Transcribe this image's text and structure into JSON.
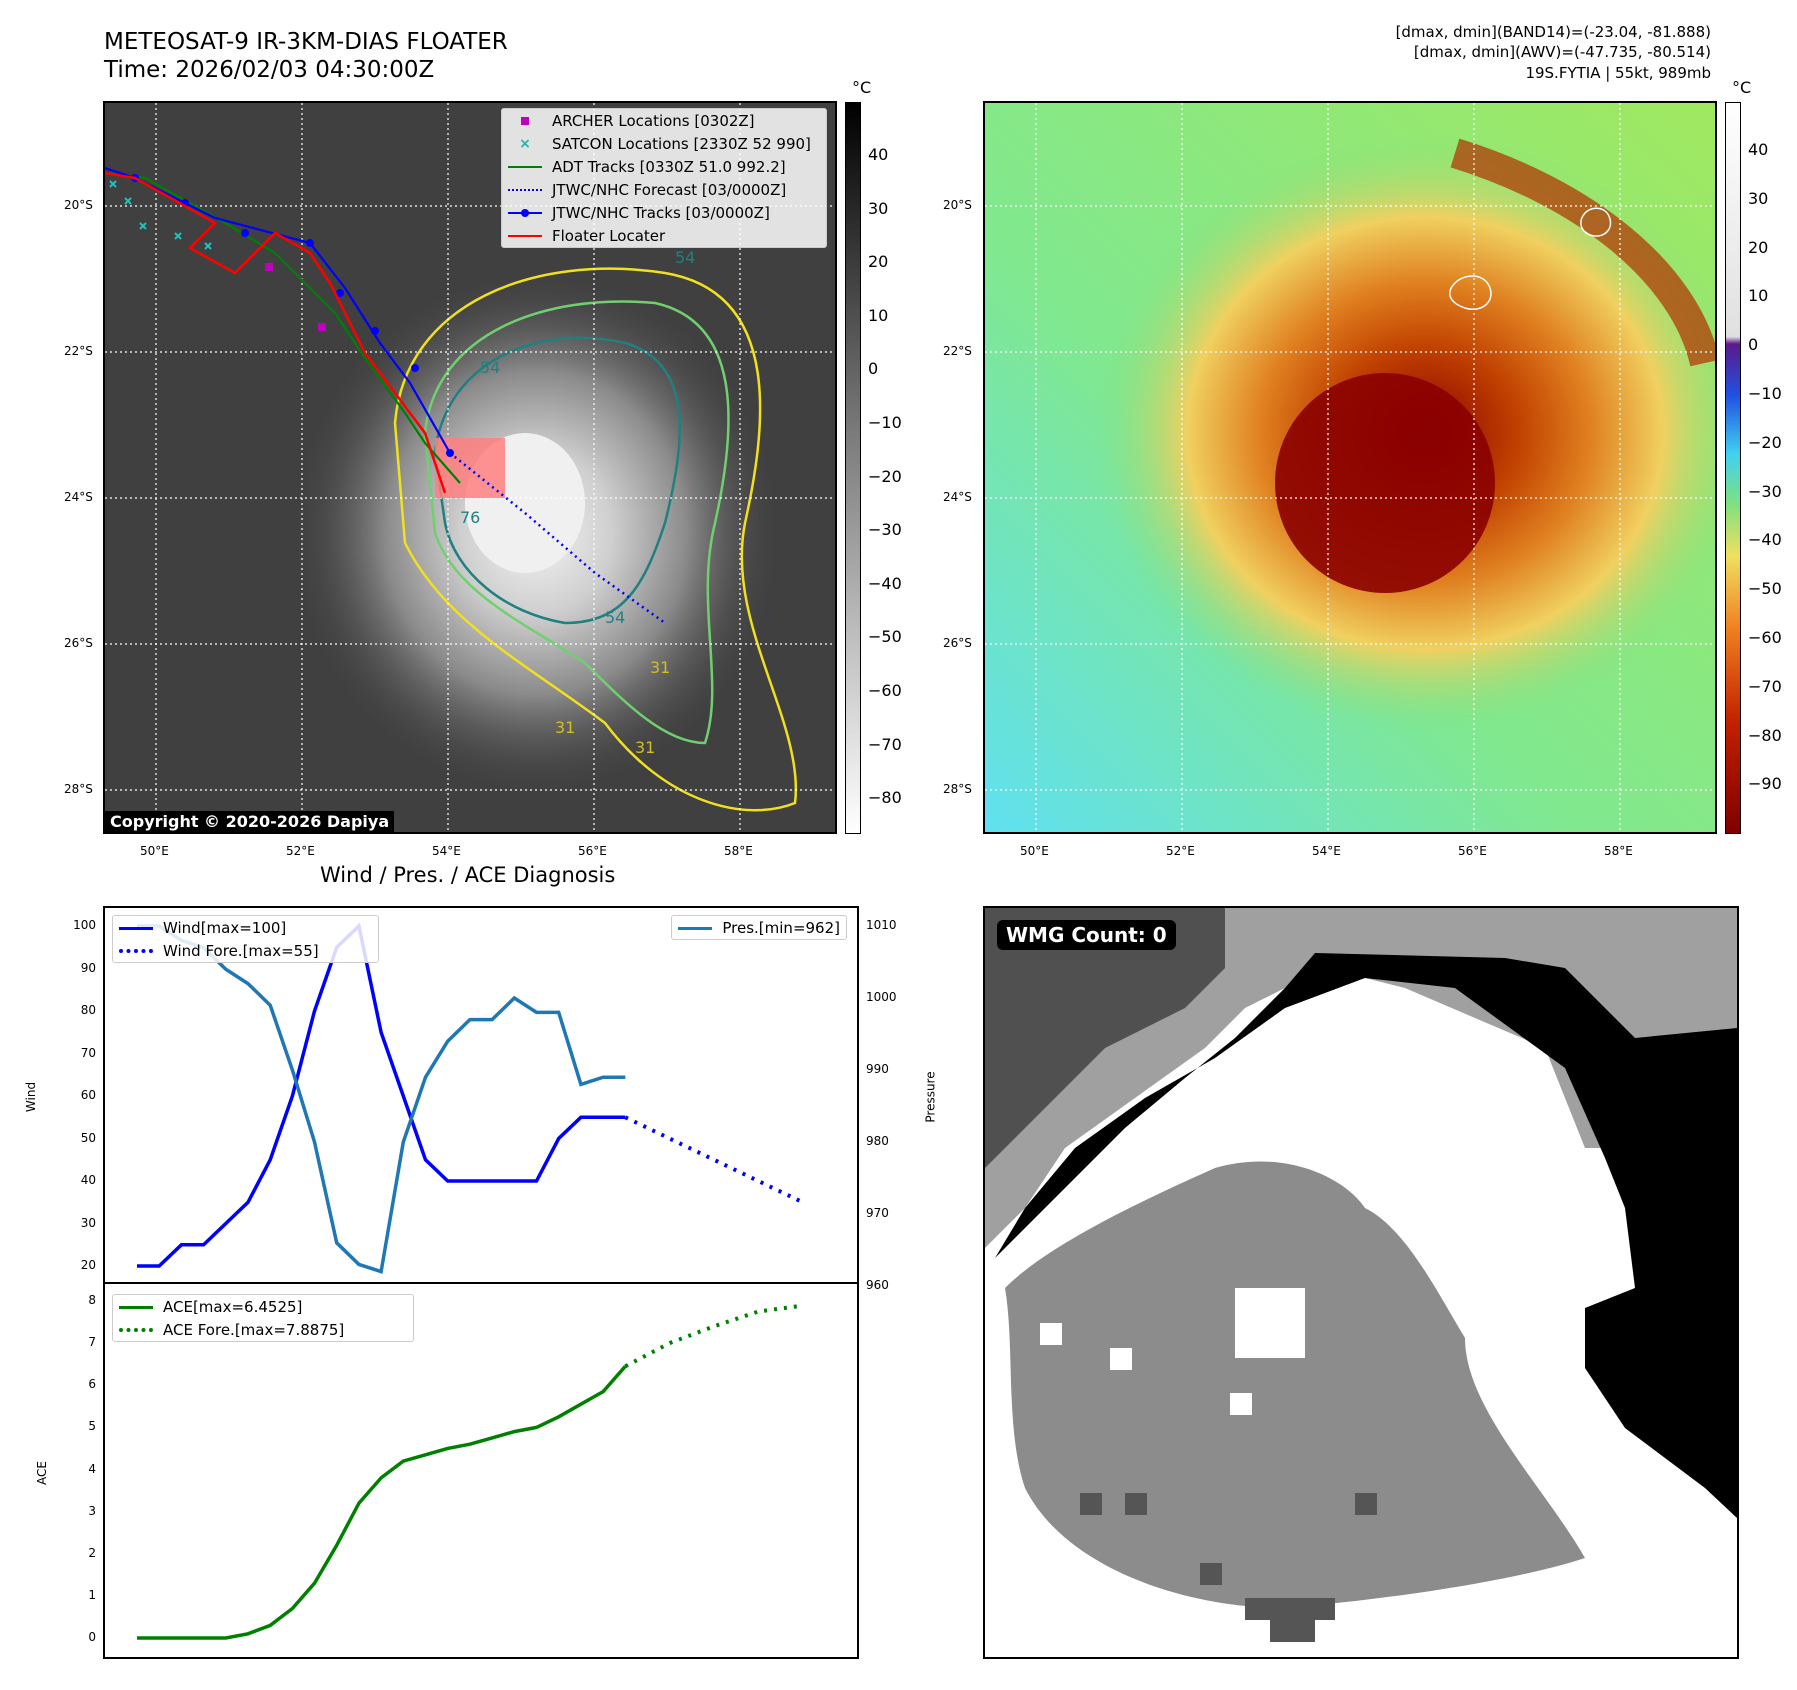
{
  "header": {
    "title_line1": "METEOSAT-9 IR-3KM-DIAS FLOATER",
    "title_line2": "Time: 2026/02/03 04:30:00Z",
    "info_line1": "[dmax, dmin](BAND14)=(-23.04, -81.888)",
    "info_line2": "[dmax, dmin](AWV)=(-47.735, -80.514)",
    "info_line3": "19S.FYTIA | 55kt, 989mb"
  },
  "map": {
    "lon_ticks": [
      "50°E",
      "52°E",
      "54°E",
      "56°E",
      "58°E"
    ],
    "lat_ticks": [
      "20°S",
      "22°S",
      "24°S",
      "26°S",
      "28°S"
    ],
    "copyright": "Copyright © 2020-2026 Dapiya",
    "colorbar_unit": "°C",
    "ir_colorbar_ticks": [
      "40",
      "30",
      "20",
      "10",
      "0",
      "−10",
      "−20",
      "−30",
      "−40",
      "−50",
      "−60",
      "−70",
      "−80"
    ],
    "awv_colorbar_ticks": [
      "40",
      "30",
      "20",
      "10",
      "0",
      "−10",
      "−20",
      "−30",
      "−40",
      "−50",
      "−60",
      "−70",
      "−80",
      "−90"
    ],
    "contour_labels": [
      "54",
      "54",
      "76",
      "54",
      "31",
      "31",
      "31"
    ],
    "legend": [
      {
        "label": "ARCHER Locations [0302Z]",
        "color": "#c000c0",
        "symbol": "square"
      },
      {
        "label": "SATCON Locations [2330Z 52 990]",
        "color": "#20b0b0",
        "symbol": "x"
      },
      {
        "label": "ADT Tracks [0330Z 51.0 992.2]",
        "color": "#008000",
        "symbol": "line"
      },
      {
        "label": "JTWC/NHC Forecast [03/0000Z]",
        "color": "#0000ff",
        "symbol": "dotted"
      },
      {
        "label": "JTWC/NHC Tracks [03/0000Z]",
        "color": "#0000ff",
        "symbol": "line-dot"
      },
      {
        "label": "Floater Locater",
        "color": "#ff0000",
        "symbol": "line"
      }
    ]
  },
  "diagnosis": {
    "title": "Wind / Pres. / ACE Diagnosis",
    "wind_ylabel": "Wind",
    "pres_ylabel": "Pressure",
    "ace_ylabel": "ACE",
    "wind_ticks": [
      "100",
      "90",
      "80",
      "70",
      "60",
      "50",
      "40",
      "30",
      "20"
    ],
    "pres_ticks": [
      "1010",
      "1000",
      "990",
      "980",
      "970",
      "960"
    ],
    "ace_ticks": [
      "8",
      "7",
      "6",
      "5",
      "4",
      "3",
      "2",
      "1",
      "0"
    ],
    "legend_wind": "Wind[max=100]",
    "legend_wind_fore": "Wind Fore.[max=55]",
    "legend_pres": "Pres.[min=962]",
    "legend_ace": "ACE[max=6.4525]",
    "legend_ace_fore": "ACE Fore.[max=7.8875]"
  },
  "wmg": {
    "label": "WMG Count: 0"
  },
  "chart_data": [
    {
      "type": "line",
      "x": [
        0,
        1,
        2,
        3,
        4,
        5,
        6,
        7,
        8,
        9,
        10,
        11,
        12,
        13,
        14,
        15,
        16,
        17,
        18,
        19,
        20,
        21,
        22
      ],
      "series": [
        {
          "name": "Wind[max=100]",
          "values": [
            20,
            20,
            25,
            25,
            30,
            35,
            45,
            60,
            80,
            95,
            100,
            75,
            60,
            45,
            40,
            40,
            40,
            40,
            40,
            50,
            55,
            55,
            55
          ]
        },
        {
          "name": "Pres.[min=962]",
          "values": [
            1010,
            1010,
            1008,
            1007,
            1004,
            1002,
            999,
            990,
            980,
            966,
            963,
            962,
            980,
            989,
            994,
            997,
            997,
            1000,
            998,
            998,
            988,
            989,
            989
          ]
        }
      ],
      "forecast": {
        "name": "Wind Fore.[max=55]",
        "x": [
          22,
          30
        ],
        "values": [
          55,
          35
        ]
      },
      "wind_ylim": [
        20,
        100
      ],
      "pres_ylim": [
        960,
        1010
      ]
    },
    {
      "type": "line",
      "x": [
        0,
        1,
        2,
        3,
        4,
        5,
        6,
        7,
        8,
        9,
        10,
        11,
        12,
        13,
        14,
        15,
        16,
        17,
        18,
        19,
        20,
        21,
        22
      ],
      "series": [
        {
          "name": "ACE[max=6.4525]",
          "values": [
            0,
            0,
            0,
            0,
            0,
            0.1,
            0.3,
            0.7,
            1.3,
            2.2,
            3.2,
            3.8,
            4.2,
            4.35,
            4.5,
            4.6,
            4.75,
            4.9,
            5.0,
            5.25,
            5.55,
            5.85,
            6.45
          ]
        }
      ],
      "forecast": {
        "name": "ACE Fore.[max=7.8875]",
        "x": [
          22,
          24,
          26,
          28,
          30
        ],
        "values": [
          6.45,
          7.0,
          7.4,
          7.75,
          7.89
        ]
      },
      "ylim": [
        0,
        8
      ]
    }
  ]
}
